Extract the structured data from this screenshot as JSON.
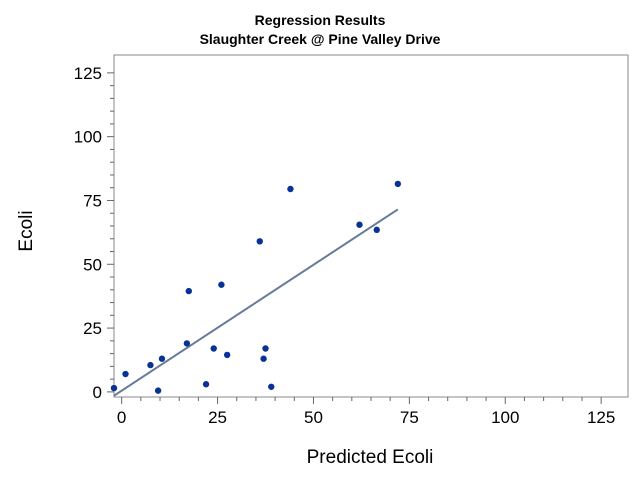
{
  "chart_data": {
    "type": "scatter",
    "title": "Regression Results",
    "subtitle": "Slaughter Creek @ Pine Valley Drive",
    "xlabel": "Predicted Ecoli",
    "ylabel": "Ecoli",
    "xlim": [
      -2,
      132
    ],
    "ylim": [
      -2,
      132
    ],
    "xticks": [
      "0",
      "25",
      "50",
      "75",
      "100",
      "125"
    ],
    "yticks": [
      "0",
      "25",
      "50",
      "75",
      "100",
      "125"
    ],
    "x_tick_values": [
      0,
      25,
      50,
      75,
      100,
      125
    ],
    "y_tick_values": [
      0,
      25,
      50,
      75,
      100,
      125
    ],
    "grid": false,
    "legend": "none",
    "colors": {
      "points": "#0a3296",
      "fit_line": "#667a99",
      "frame": "#888888"
    },
    "series": [
      {
        "kind": "points",
        "x": [
          -2,
          1,
          7.5,
          9.5,
          10.5,
          17,
          17.5,
          22,
          24,
          26,
          27.5,
          36,
          37,
          37.5,
          39,
          44,
          62,
          66.5,
          72
        ],
        "y": [
          1.5,
          7,
          10.5,
          0.5,
          13,
          19,
          39.5,
          3,
          17,
          42,
          14.5,
          59,
          13,
          17,
          2,
          79.5,
          65.5,
          63.5,
          81.5
        ]
      },
      {
        "kind": "fit_line",
        "x": [
          -2,
          72
        ],
        "y": [
          -1.5,
          71.5
        ]
      }
    ]
  }
}
